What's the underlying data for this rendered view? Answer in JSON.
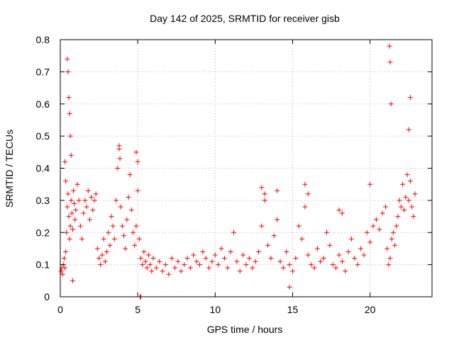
{
  "chart_data": {
    "type": "scatter",
    "title": "Day 142 of 2025, SRMTID for receiver gisb",
    "xlabel": "GPS time / hours",
    "ylabel": "SRMTID / TECUs",
    "xlim": [
      0,
      24
    ],
    "ylim": [
      0,
      0.8
    ],
    "xticks": [
      0,
      5,
      10,
      15,
      20
    ],
    "xtick_labels": [
      "0",
      "5",
      "10",
      "15",
      "20"
    ],
    "yticks": [
      0,
      0.1,
      0.2,
      0.3,
      0.4,
      0.5,
      0.6,
      0.7,
      0.8
    ],
    "ytick_labels": [
      "0",
      "0.1",
      "0.2",
      "0.3",
      "0.4",
      "0.5",
      "0.6",
      "0.7",
      "0.8"
    ],
    "grid": true,
    "marker": "+",
    "color": "#ff0000",
    "series": [
      {
        "name": "gisb",
        "x": [
          0.05,
          0.1,
          0.15,
          0.2,
          0.25,
          0.3,
          0.35,
          0.4,
          0.45,
          0.5,
          0.55,
          0.6,
          0.65,
          0.7,
          0.75,
          0.8,
          0.85,
          0.9,
          0.95,
          1.0,
          1.1,
          1.2,
          1.3,
          1.4,
          1.5,
          1.6,
          1.7,
          1.8,
          1.9,
          2.0,
          2.1,
          2.2,
          2.3,
          2.4,
          2.5,
          2.6,
          2.7,
          2.8,
          2.9,
          3.0,
          3.1,
          3.2,
          3.3,
          3.4,
          3.5,
          3.6,
          3.7,
          3.8,
          3.9,
          4.0,
          4.1,
          4.2,
          4.3,
          4.4,
          4.5,
          4.6,
          4.7,
          4.8,
          4.9,
          5.0,
          5.1,
          5.2,
          5.3,
          5.4,
          5.5,
          5.6,
          5.7,
          5.8,
          5.9,
          6.0,
          6.2,
          6.4,
          6.6,
          6.8,
          7.0,
          7.2,
          7.4,
          7.6,
          7.8,
          8.0,
          8.2,
          8.4,
          8.6,
          8.8,
          9.0,
          9.2,
          9.4,
          9.6,
          9.8,
          10.0,
          10.2,
          10.4,
          10.6,
          10.8,
          11.0,
          11.2,
          11.4,
          11.6,
          11.8,
          12.0,
          12.2,
          12.4,
          12.6,
          12.8,
          13.0,
          13.2,
          13.4,
          13.6,
          13.8,
          14.0,
          14.2,
          14.4,
          14.6,
          14.8,
          15.0,
          15.2,
          15.4,
          15.6,
          15.8,
          16.0,
          16.2,
          16.4,
          16.6,
          16.8,
          17.0,
          17.2,
          17.4,
          17.6,
          17.8,
          18.0,
          18.2,
          18.4,
          18.6,
          18.8,
          19.0,
          19.2,
          19.4,
          19.6,
          19.8,
          20.0,
          20.2,
          20.4,
          20.6,
          20.8,
          21.0,
          21.1,
          21.2,
          21.3,
          21.4,
          21.5,
          21.6,
          21.7,
          21.8,
          21.9,
          22.0,
          22.1,
          22.2,
          22.3,
          22.4,
          22.5,
          22.6,
          22.7,
          22.8,
          22.9,
          0.45,
          0.5,
          0.55,
          0.6,
          0.65,
          0.7,
          3.8,
          3.85,
          4.9,
          5.0,
          13.0,
          13.2,
          14.0,
          15.8,
          16.0,
          18.0,
          18.2,
          20.0,
          21.25,
          21.3,
          21.35,
          22.5,
          22.6,
          0.3,
          0.35,
          0.8,
          5.15,
          5.2,
          14.8
        ],
        "y": [
          0.08,
          0.09,
          0.07,
          0.1,
          0.12,
          0.09,
          0.14,
          0.2,
          0.28,
          0.32,
          0.25,
          0.18,
          0.22,
          0.3,
          0.26,
          0.21,
          0.33,
          0.29,
          0.24,
          0.27,
          0.35,
          0.3,
          0.22,
          0.18,
          0.26,
          0.3,
          0.28,
          0.33,
          0.24,
          0.31,
          0.27,
          0.3,
          0.32,
          0.15,
          0.12,
          0.1,
          0.13,
          0.18,
          0.11,
          0.14,
          0.2,
          0.16,
          0.25,
          0.22,
          0.18,
          0.3,
          0.4,
          0.46,
          0.28,
          0.22,
          0.19,
          0.15,
          0.24,
          0.31,
          0.38,
          0.27,
          0.2,
          0.16,
          0.22,
          0.33,
          0.18,
          0.12,
          0.1,
          0.14,
          0.11,
          0.09,
          0.13,
          0.1,
          0.08,
          0.12,
          0.09,
          0.11,
          0.08,
          0.1,
          0.07,
          0.12,
          0.09,
          0.11,
          0.08,
          0.1,
          0.12,
          0.09,
          0.13,
          0.11,
          0.1,
          0.14,
          0.12,
          0.09,
          0.11,
          0.13,
          0.1,
          0.15,
          0.12,
          0.09,
          0.14,
          0.2,
          0.11,
          0.08,
          0.13,
          0.1,
          0.12,
          0.09,
          0.11,
          0.14,
          0.22,
          0.3,
          0.16,
          0.12,
          0.19,
          0.24,
          0.11,
          0.09,
          0.14,
          0.1,
          0.08,
          0.12,
          0.22,
          0.18,
          0.28,
          0.13,
          0.1,
          0.09,
          0.15,
          0.11,
          0.12,
          0.2,
          0.16,
          0.1,
          0.09,
          0.13,
          0.11,
          0.08,
          0.14,
          0.18,
          0.12,
          0.1,
          0.15,
          0.13,
          0.2,
          0.17,
          0.22,
          0.24,
          0.21,
          0.26,
          0.28,
          0.15,
          0.1,
          0.12,
          0.18,
          0.2,
          0.16,
          0.22,
          0.25,
          0.3,
          0.28,
          0.35,
          0.27,
          0.31,
          0.38,
          0.3,
          0.36,
          0.28,
          0.25,
          0.32,
          0.74,
          0.7,
          0.62,
          0.57,
          0.5,
          0.44,
          0.47,
          0.43,
          0.45,
          0.42,
          0.34,
          0.32,
          0.33,
          0.35,
          0.32,
          0.27,
          0.26,
          0.35,
          0.78,
          0.73,
          0.6,
          0.52,
          0.62,
          0.42,
          0.36,
          0.05,
          0.0,
          0.0,
          0.03
        ]
      }
    ]
  }
}
